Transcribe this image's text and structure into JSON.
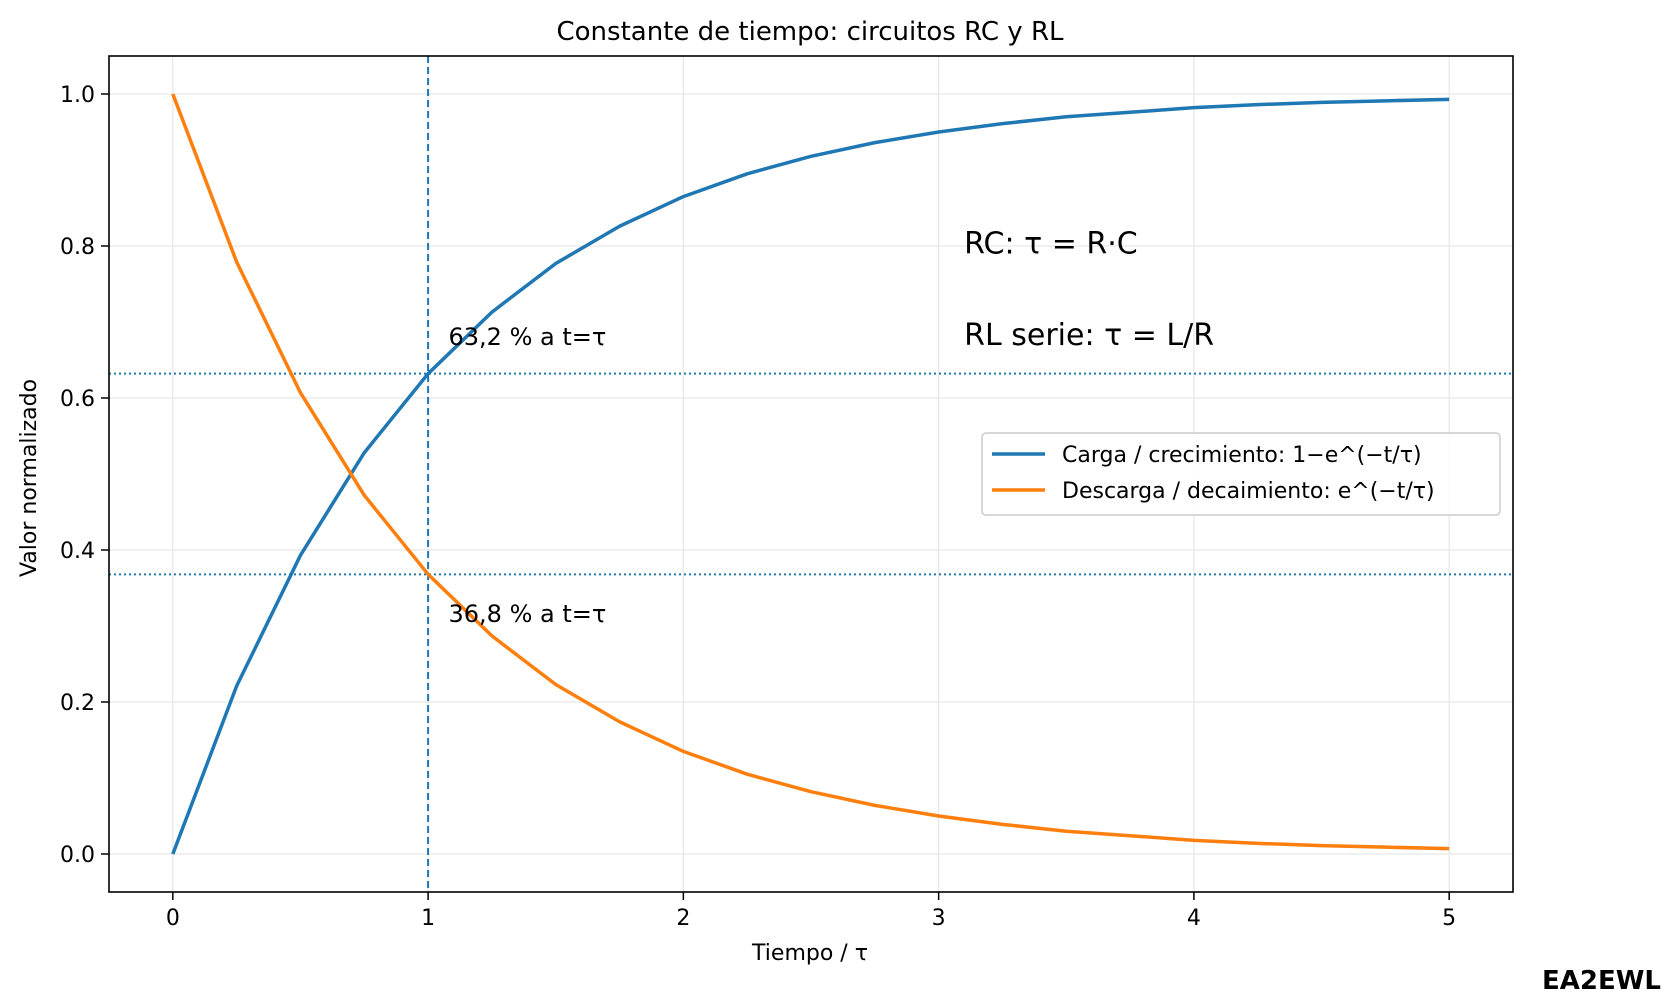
{
  "chart_data": {
    "type": "line",
    "title": "Constante de tiempo: circuitos RC y RL",
    "xlabel": "Tiempo / τ",
    "ylabel": "Valor normalizado",
    "xlim": [
      -0.25,
      5.25
    ],
    "ylim": [
      -0.05,
      1.05
    ],
    "xticks": [
      0,
      1,
      2,
      3,
      4,
      5
    ],
    "xtick_labels": [
      "0",
      "1",
      "2",
      "3",
      "4",
      "5"
    ],
    "yticks": [
      0.0,
      0.2,
      0.4,
      0.6,
      0.8,
      1.0
    ],
    "ytick_labels": [
      "0.0",
      "0.2",
      "0.4",
      "0.6",
      "0.8",
      "1.0"
    ],
    "grid": true,
    "legend_position": "center-right",
    "series": [
      {
        "name": "Carga / crecimiento: 1−e^(−t/τ)",
        "color": "#1f77b4",
        "x": [
          0,
          0.25,
          0.5,
          0.75,
          1,
          1.25,
          1.5,
          1.75,
          2,
          2.25,
          2.5,
          2.75,
          3,
          3.25,
          3.5,
          3.75,
          4,
          4.25,
          4.5,
          4.75,
          5
        ],
        "y": [
          0.0,
          0.221,
          0.393,
          0.528,
          0.632,
          0.713,
          0.777,
          0.826,
          0.865,
          0.895,
          0.918,
          0.936,
          0.95,
          0.961,
          0.97,
          0.976,
          0.982,
          0.986,
          0.989,
          0.991,
          0.993
        ]
      },
      {
        "name": "Descarga / decaimiento: e^(−t/τ)",
        "color": "#ff7f0e",
        "x": [
          0,
          0.25,
          0.5,
          0.75,
          1,
          1.25,
          1.5,
          1.75,
          2,
          2.25,
          2.5,
          2.75,
          3,
          3.25,
          3.5,
          3.75,
          4,
          4.25,
          4.5,
          4.75,
          5
        ],
        "y": [
          1.0,
          0.779,
          0.607,
          0.472,
          0.368,
          0.287,
          0.223,
          0.174,
          0.135,
          0.105,
          0.082,
          0.064,
          0.05,
          0.039,
          0.03,
          0.024,
          0.018,
          0.014,
          0.011,
          0.009,
          0.007
        ]
      }
    ],
    "reference_lines": [
      {
        "orientation": "vertical",
        "value": 1,
        "style": "dashed",
        "color": "#1f77b4"
      },
      {
        "orientation": "horizontal",
        "value": 0.632,
        "style": "dotted",
        "color": "#1f77b4"
      },
      {
        "orientation": "horizontal",
        "value": 0.368,
        "style": "dotted",
        "color": "#1f77b4"
      }
    ],
    "annotations": [
      {
        "text": "63,2 % a t=τ",
        "x": 1.08,
        "y": 0.67,
        "size": "medium"
      },
      {
        "text": "36,8 % a t=τ",
        "x": 1.08,
        "y": 0.305,
        "size": "medium"
      },
      {
        "text": "RC: τ = R·C",
        "x": 3.1,
        "y": 0.79,
        "size": "large"
      },
      {
        "text": "RL serie: τ = L/R",
        "x": 3.1,
        "y": 0.67,
        "size": "large"
      }
    ]
  },
  "watermark": "EA2EWL"
}
